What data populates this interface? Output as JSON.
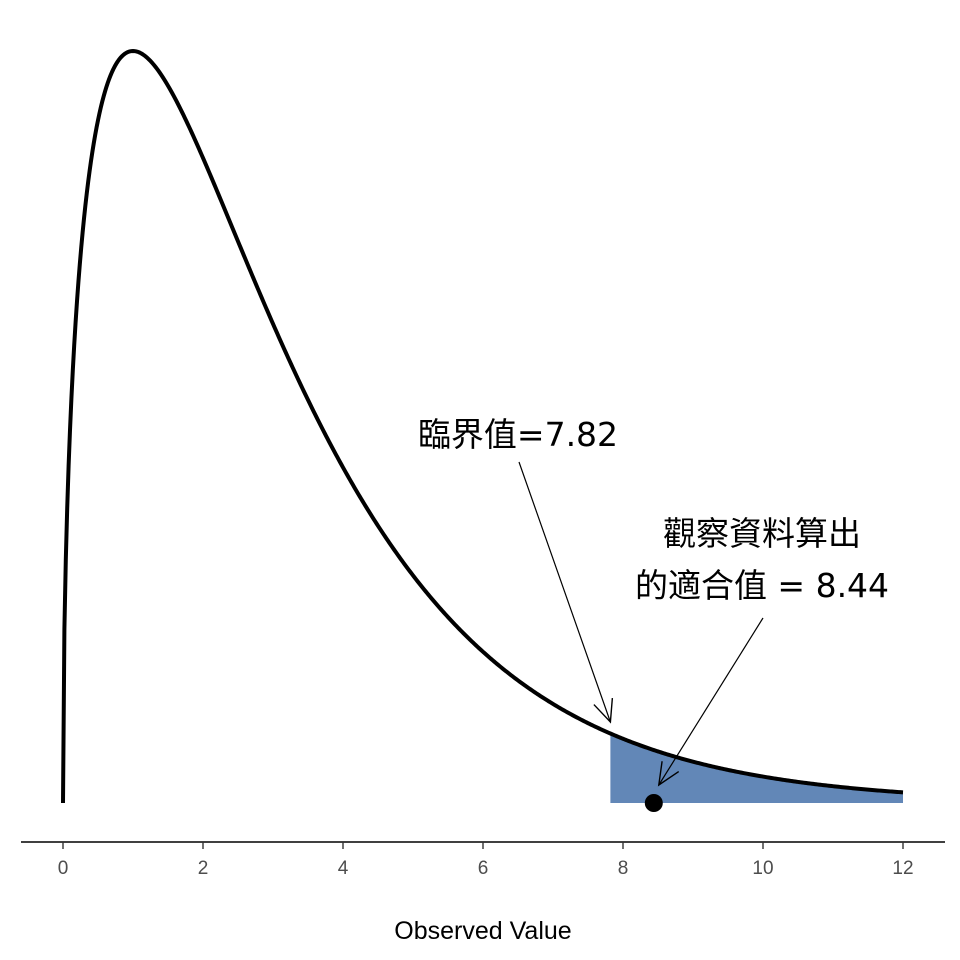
{
  "chart_data": {
    "type": "area",
    "distribution": "chi-square",
    "degrees_of_freedom": 3,
    "xlabel": "Observed Value",
    "ylabel": "",
    "xlim": [
      0,
      12
    ],
    "x_ticks": [
      0,
      2,
      4,
      6,
      8,
      10,
      12
    ],
    "x_tick_labels": [
      "0",
      "2",
      "4",
      "6",
      "8",
      "10",
      "12"
    ],
    "y_axis_shown": false,
    "grid": false,
    "critical_value": 7.82,
    "observed_value": 8.44,
    "shaded_region": [
      7.82,
      12
    ],
    "annotations": {
      "critical": "臨界值=7.82",
      "observed_line1": "觀察資料算出",
      "observed_line2": "的適合值 = 8.44"
    },
    "colors": {
      "curve": "#000000",
      "rejection_fill": "#6287b7",
      "observed_point": "#000000",
      "axis": "#000000",
      "tick_label": "#4d4d4d"
    }
  }
}
